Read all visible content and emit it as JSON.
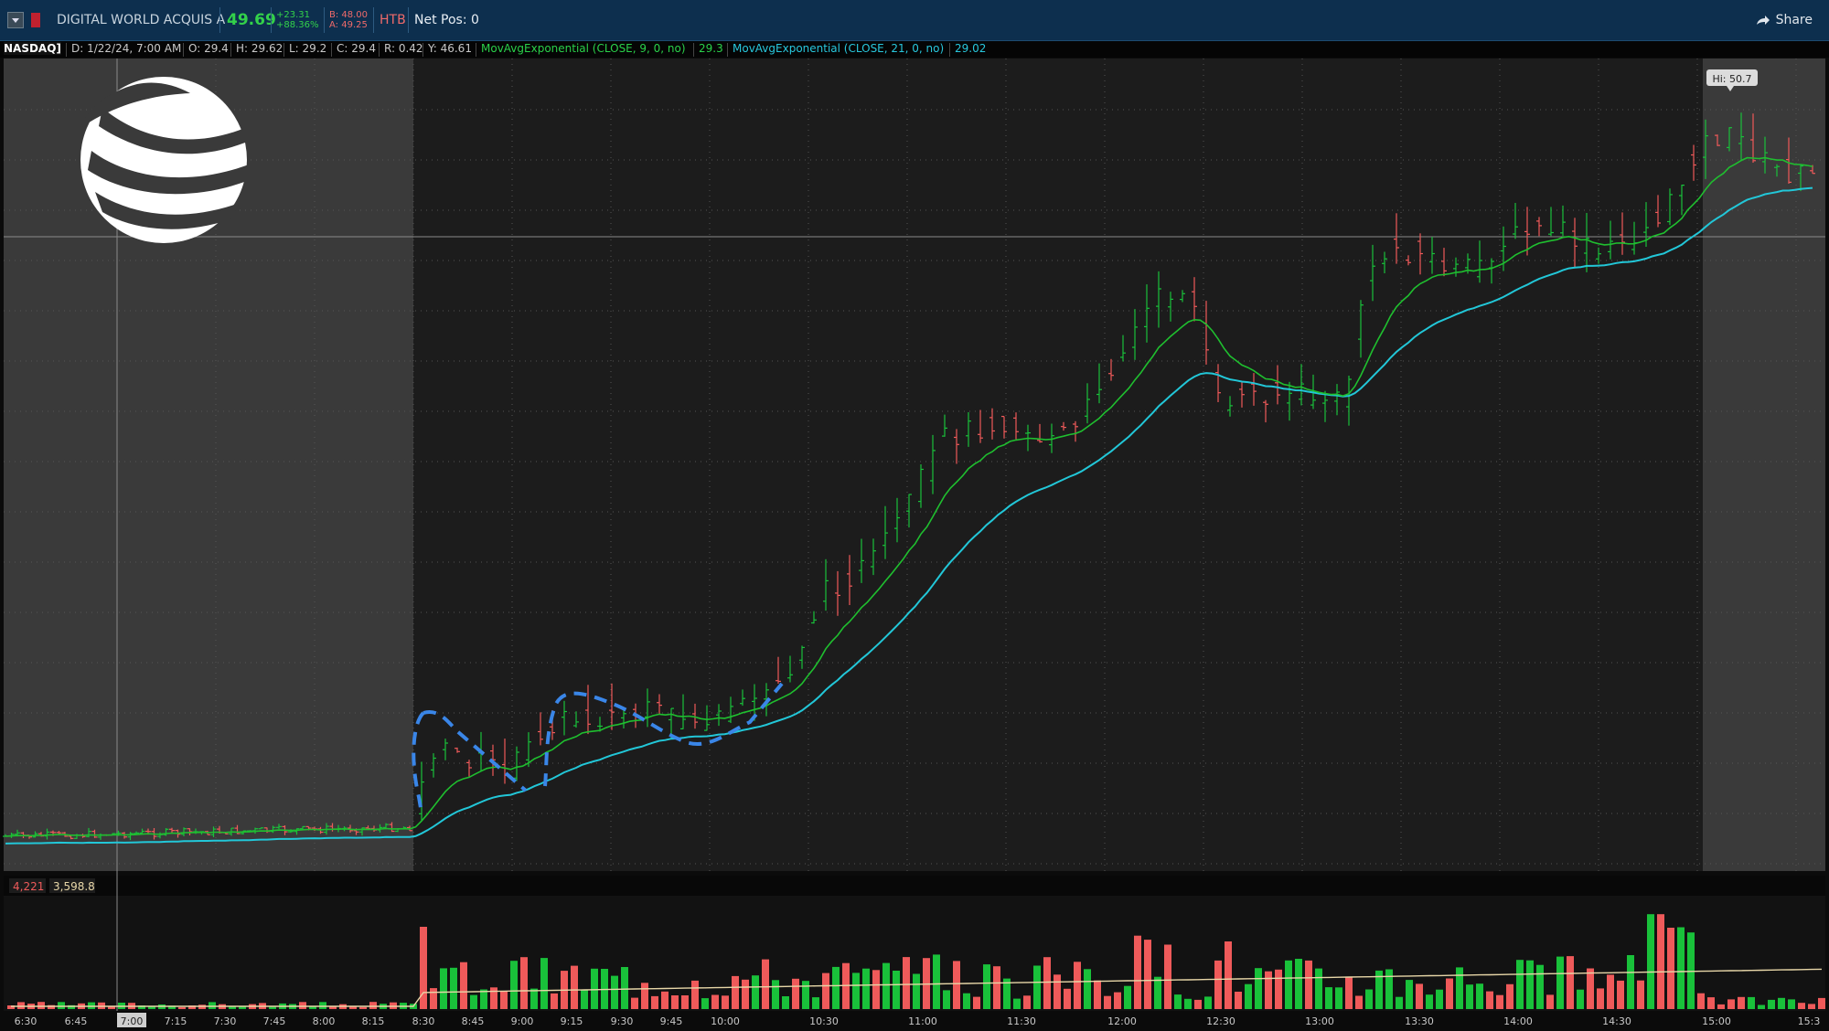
{
  "header": {
    "symbol_name": "DIGITAL WORLD ACQUIS A",
    "last_price": "49.69",
    "change": "+23.31",
    "change_pct": "+88.36%",
    "bid": "B: 48.00",
    "ask": "A: 49.25",
    "htb": "HTB",
    "net_pos": "Net Pos: 0",
    "share_label": "Share"
  },
  "info": {
    "exchange": "NASDAQ]",
    "date": "D: 1/22/24, 7:00 AM",
    "open": "O: 29.4",
    "high": "H: 29.62",
    "low": "L: 29.2",
    "close": "C: 29.4",
    "range": "R: 0.42",
    "y": "Y: 46.61",
    "ema9_label": "MovAvgExponential (CLOSE, 9, 0, no)",
    "ema9_value": "29.3",
    "ema21_label": "MovAvgExponential (CLOSE, 21, 0, no)",
    "ema21_value": "29.02"
  },
  "volume_panel": {
    "value_a": "4,221",
    "value_b": "3,598.8"
  },
  "chart_data": {
    "type": "bar",
    "time_labels": [
      "6:30",
      "6:45",
      "7:00",
      "7:15",
      "7:30",
      "7:45",
      "8:00",
      "8:15",
      "8:30",
      "8:45",
      "9:00",
      "9:15",
      "9:30",
      "9:45",
      "10:00",
      "10:30",
      "11:00",
      "11:30",
      "12:00",
      "12:30",
      "13:00",
      "13:30",
      "14:00",
      "14:30",
      "15:00",
      "15:3"
    ],
    "selected_time": "7:00",
    "high_label": "Hi: 50.7",
    "colors": {
      "up": "#19c13a",
      "down": "#ef5a5a",
      "ema9": "#1fbf2f",
      "ema21": "#22c7d8",
      "avg_volume": "#e8d7a8",
      "annotation": "#3a86e8"
    }
  }
}
